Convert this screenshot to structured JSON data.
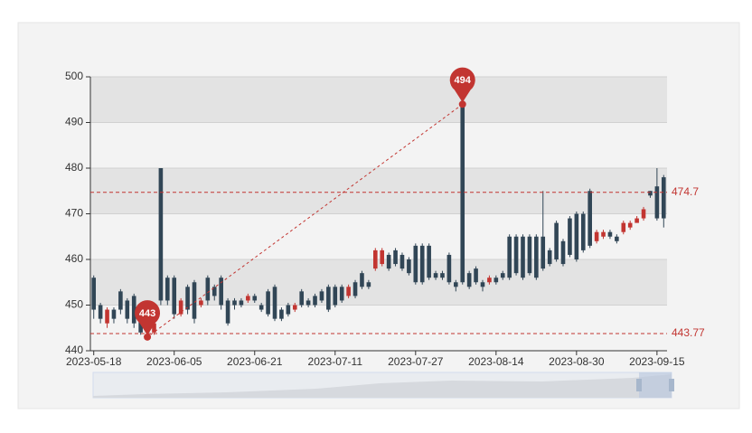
{
  "chart_data": {
    "type": "candlestick",
    "categories": [
      "2023-05-18",
      null,
      null,
      null,
      null,
      null,
      null,
      null,
      null,
      null,
      null,
      null,
      "2023-06-05",
      null,
      null,
      null,
      null,
      null,
      null,
      null,
      null,
      null,
      null,
      null,
      "2023-06-21",
      null,
      null,
      null,
      null,
      null,
      null,
      null,
      null,
      null,
      null,
      null,
      "2023-07-11",
      null,
      null,
      null,
      null,
      null,
      null,
      null,
      null,
      null,
      null,
      null,
      "2023-07-27",
      null,
      null,
      null,
      null,
      null,
      null,
      null,
      null,
      null,
      null,
      null,
      "2023-08-14",
      null,
      null,
      null,
      null,
      null,
      null,
      null,
      null,
      null,
      null,
      null,
      "2023-08-30",
      null,
      null,
      null,
      null,
      null,
      null,
      null,
      null,
      null,
      null,
      null,
      "2023-09-15",
      null
    ],
    "open": [
      456,
      450,
      446,
      449,
      453,
      451,
      452,
      447,
      445,
      444,
      480,
      456,
      456,
      448,
      454,
      455,
      450,
      456,
      454,
      456,
      451,
      451,
      451,
      451,
      452,
      450,
      453,
      454,
      449,
      450,
      449,
      453,
      451,
      452,
      453,
      454,
      454,
      454,
      452,
      455,
      457,
      455,
      458,
      459,
      461,
      462,
      461,
      460,
      463,
      463,
      463,
      457,
      457,
      461,
      455,
      494,
      457,
      458,
      455,
      455,
      456,
      457,
      465,
      465,
      465,
      465,
      465,
      465,
      462,
      468,
      464,
      469,
      470,
      470,
      475,
      464,
      465,
      466,
      465,
      466,
      467,
      468,
      469,
      475,
      476,
      478
    ],
    "close": [
      449,
      447,
      449,
      447,
      449,
      447,
      446,
      444,
      444,
      446,
      451,
      451,
      448,
      451,
      449,
      447,
      451,
      451,
      452,
      450,
      446,
      450,
      450,
      452,
      451,
      449,
      448,
      447,
      447,
      448,
      450,
      450,
      450,
      450,
      451,
      449,
      450,
      451,
      454,
      452,
      454,
      454,
      462,
      462,
      458,
      459,
      458,
      457,
      455,
      455,
      456,
      456,
      456,
      455,
      454,
      455,
      454,
      455,
      454,
      456,
      455,
      456,
      456,
      457,
      456,
      457,
      456,
      458,
      459,
      460,
      459,
      461,
      460,
      462,
      463,
      466,
      466,
      465,
      464,
      468,
      468,
      469,
      471,
      474,
      469,
      469
    ],
    "low": [
      447,
      446,
      445,
      446,
      448,
      446,
      445,
      443.5,
      443,
      443.5,
      450,
      450,
      447,
      447.5,
      448,
      446,
      449.5,
      450,
      451,
      449,
      445.5,
      449,
      449.5,
      450.5,
      450.5,
      448.5,
      447.5,
      446.5,
      446.5,
      447.5,
      448.5,
      449.5,
      449.5,
      449.5,
      450.5,
      448.5,
      449.5,
      450.5,
      451.5,
      451.5,
      453.5,
      453.5,
      457.5,
      458.5,
      457.5,
      458.5,
      457.5,
      456.5,
      454.5,
      454.5,
      455.5,
      455.5,
      455.5,
      454.5,
      453,
      454.5,
      453.5,
      454.5,
      453,
      454.5,
      454.5,
      455.5,
      455.5,
      456.5,
      455.5,
      456.5,
      455.5,
      457.5,
      458.5,
      459.5,
      458.5,
      460.5,
      459.5,
      461.5,
      462.5,
      463.5,
      464.5,
      464.5,
      463.5,
      465.5,
      466.5,
      468.5,
      468.5,
      473.5,
      468.5,
      467
    ],
    "high": [
      456.5,
      450.5,
      449.5,
      449.5,
      453.5,
      451.5,
      452.5,
      447.5,
      445.5,
      446.5,
      480,
      456.5,
      456.5,
      451.5,
      454.5,
      455.5,
      451.5,
      456.5,
      454.5,
      456.5,
      451.5,
      451.5,
      451.5,
      452.5,
      452.5,
      450.5,
      453.5,
      454.5,
      449.5,
      450.5,
      450.5,
      453.5,
      451.5,
      452.5,
      453.5,
      454.5,
      454.5,
      454.5,
      454.5,
      455.5,
      457.5,
      455.5,
      462.5,
      462.5,
      461.5,
      462.5,
      461.5,
      460.5,
      463.5,
      463.5,
      463.5,
      457.5,
      457.5,
      461.5,
      455.5,
      494,
      457.5,
      458.5,
      455.5,
      456.5,
      456.5,
      457.5,
      465.5,
      465.5,
      465.5,
      465.5,
      465.5,
      475,
      462.5,
      468.5,
      464.5,
      469.5,
      470.5,
      470.5,
      475.5,
      466.5,
      466.5,
      466.5,
      465.5,
      468.5,
      468.5,
      469.5,
      471.5,
      475,
      480,
      478.5
    ],
    "up_color": "#c23531",
    "down_color": "#314656",
    "ylim": [
      440,
      500
    ],
    "yticks": [
      440,
      450,
      460,
      470,
      480,
      490,
      500
    ],
    "mark_points": [
      494,
      443
    ],
    "mark_lines": [
      474.7,
      443.77
    ],
    "mark_color": "#c23531"
  }
}
